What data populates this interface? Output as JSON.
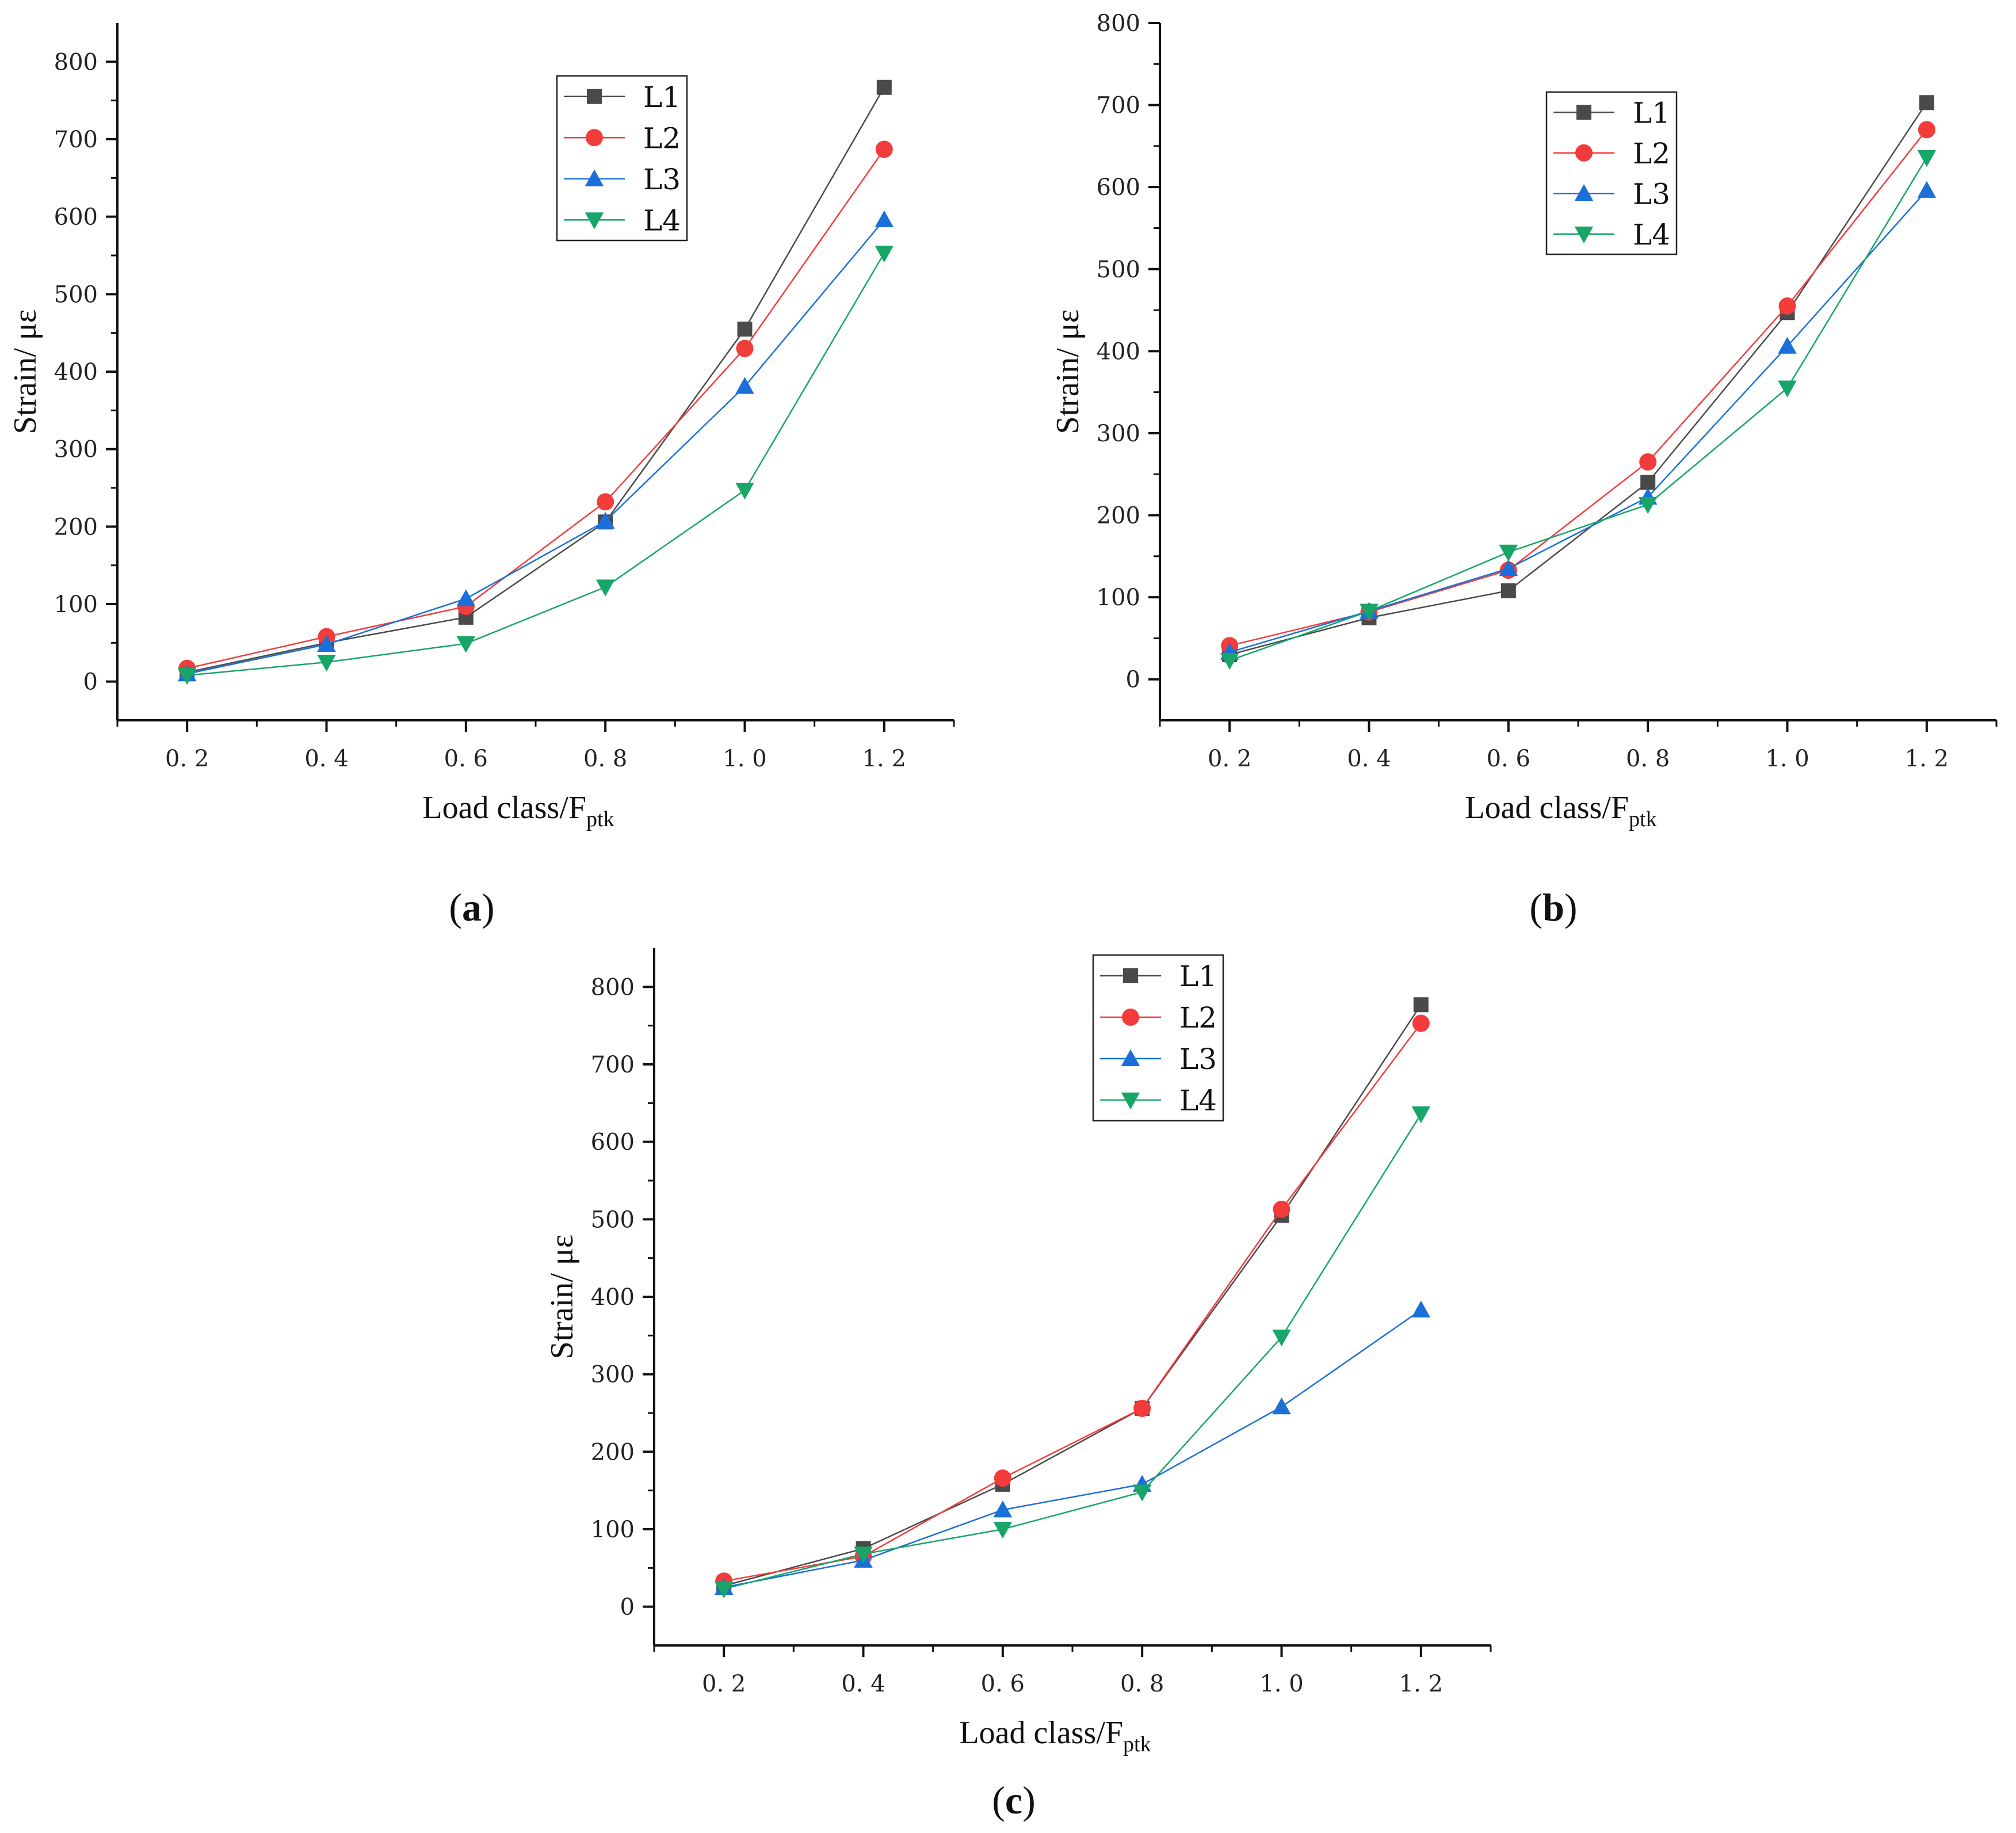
{
  "colors": {
    "L1": "#4a4a4a",
    "L2": "#f23c3c",
    "L3": "#1a70d8",
    "L4": "#17a568"
  },
  "chart_data": [
    {
      "type": "line",
      "panel_label": "a",
      "xlabel": "Load class/F",
      "xlabel_sub": "ptk",
      "ylabel": "Strain/ με",
      "x": [
        0.2,
        0.4,
        0.6,
        0.8,
        1.0,
        1.2
      ],
      "x_tick_labels": [
        "0. 2",
        "0. 4",
        "0. 6",
        "0. 8",
        "1. 0",
        "1. 2"
      ],
      "xlim": [
        0.1,
        1.3
      ],
      "ylim": [
        -50,
        850
      ],
      "y_ticks": [
        0,
        100,
        200,
        300,
        400,
        500,
        600,
        700,
        800
      ],
      "y_tick_labels": [
        "0",
        "100",
        "200",
        "300",
        "400",
        "500",
        "600",
        "700",
        "800"
      ],
      "legend_position": "top-right",
      "series": [
        {
          "name": "L1",
          "marker": "square",
          "values": [
            12,
            50,
            83,
            206,
            455,
            767
          ]
        },
        {
          "name": "L2",
          "marker": "circle",
          "values": [
            17,
            58,
            97,
            232,
            430,
            687
          ]
        },
        {
          "name": "L3",
          "marker": "triangle-up",
          "values": [
            10,
            48,
            107,
            207,
            381,
            596
          ]
        },
        {
          "name": "L4",
          "marker": "triangle-down",
          "values": [
            8,
            25,
            49,
            122,
            247,
            553
          ]
        }
      ]
    },
    {
      "type": "line",
      "panel_label": "b",
      "xlabel": "Load class/F",
      "xlabel_sub": "ptk",
      "ylabel": "Strain/ με",
      "x": [
        0.2,
        0.4,
        0.6,
        0.8,
        1.0,
        1.2
      ],
      "x_tick_labels": [
        "0. 2",
        "0. 4",
        "0. 6",
        "0. 8",
        "1. 0",
        "1. 2"
      ],
      "xlim": [
        0.1,
        1.3
      ],
      "ylim": [
        -50,
        800
      ],
      "y_ticks": [
        0,
        100,
        200,
        300,
        400,
        500,
        600,
        700,
        800
      ],
      "y_tick_labels": [
        "0",
        "100",
        "200",
        "300",
        "400",
        "500",
        "600",
        "700",
        "800"
      ],
      "legend_position": "top-right",
      "series": [
        {
          "name": "L1",
          "marker": "square",
          "values": [
            30,
            75,
            108,
            240,
            447,
            703
          ]
        },
        {
          "name": "L2",
          "marker": "circle",
          "values": [
            41,
            82,
            133,
            265,
            455,
            670
          ]
        },
        {
          "name": "L3",
          "marker": "triangle-up",
          "values": [
            33,
            83,
            135,
            222,
            406,
            596
          ]
        },
        {
          "name": "L4",
          "marker": "triangle-down",
          "values": [
            23,
            83,
            155,
            213,
            355,
            636
          ]
        }
      ]
    },
    {
      "type": "line",
      "panel_label": "c",
      "xlabel": "Load class/F",
      "xlabel_sub": "ptk",
      "ylabel": "Strain/ με",
      "x": [
        0.2,
        0.4,
        0.6,
        0.8,
        1.0,
        1.2
      ],
      "x_tick_labels": [
        "0. 2",
        "0. 4",
        "0. 6",
        "0. 8",
        "1. 0",
        "1. 2"
      ],
      "xlim": [
        0.1,
        1.3
      ],
      "ylim": [
        -50,
        850
      ],
      "y_ticks": [
        0,
        100,
        200,
        300,
        400,
        500,
        600,
        700,
        800
      ],
      "y_tick_labels": [
        "0",
        "100",
        "200",
        "300",
        "400",
        "500",
        "600",
        "700",
        "800"
      ],
      "legend_position": "top-right",
      "series": [
        {
          "name": "L1",
          "marker": "square",
          "values": [
            27,
            75,
            158,
            256,
            505,
            777
          ]
        },
        {
          "name": "L2",
          "marker": "circle",
          "values": [
            33,
            65,
            166,
            256,
            513,
            753
          ]
        },
        {
          "name": "L3",
          "marker": "triangle-up",
          "values": [
            25,
            60,
            125,
            158,
            258,
            383
          ]
        },
        {
          "name": "L4",
          "marker": "triangle-down",
          "values": [
            23,
            68,
            100,
            148,
            348,
            636
          ]
        }
      ]
    }
  ]
}
